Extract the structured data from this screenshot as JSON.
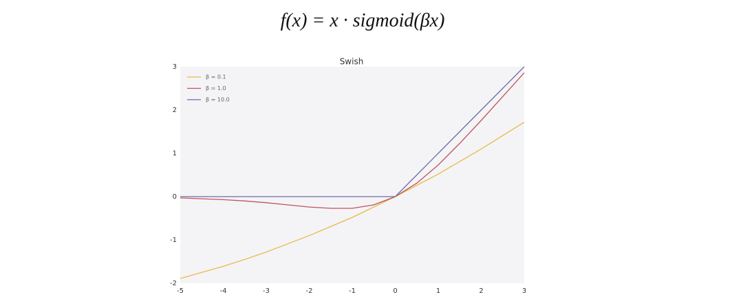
{
  "formula": "f(x) = x · sigmoid(βx)",
  "chart_data": {
    "type": "line",
    "title": "Swish",
    "x": [
      -5,
      -4.5,
      -4,
      -3.5,
      -3,
      -2.5,
      -2,
      -1.5,
      -1,
      -0.5,
      0,
      0.5,
      1,
      1.5,
      2,
      2.5,
      3
    ],
    "series": [
      {
        "name": "β = 0.1",
        "color": "#e9b949",
        "values": [
          -1.89,
          -1.75,
          -1.61,
          -1.45,
          -1.28,
          -1.09,
          -0.9,
          -0.69,
          -0.48,
          -0.24,
          0,
          0.26,
          0.52,
          0.81,
          1.1,
          1.41,
          1.72
        ]
      },
      {
        "name": "β = 1.0",
        "color": "#c0525c",
        "values": [
          -0.03,
          -0.05,
          -0.07,
          -0.1,
          -0.14,
          -0.19,
          -0.24,
          -0.27,
          -0.27,
          -0.19,
          0,
          0.31,
          0.73,
          1.23,
          1.76,
          2.31,
          2.86
        ]
      },
      {
        "name": "β = 10.0",
        "color": "#6b6ba8",
        "values": [
          0,
          0,
          0,
          0,
          0,
          0,
          0,
          0,
          0,
          0,
          0,
          0.5,
          1,
          1.5,
          2,
          2.5,
          3
        ]
      }
    ],
    "xlim": [
      -5,
      3
    ],
    "xticks": [
      -5,
      -4,
      -3,
      -2,
      -1,
      0,
      1,
      2,
      3
    ],
    "ylim": [
      -2,
      3
    ],
    "yticks": [
      -2,
      -1,
      0,
      1,
      2,
      3
    ],
    "legend": "upper left"
  }
}
